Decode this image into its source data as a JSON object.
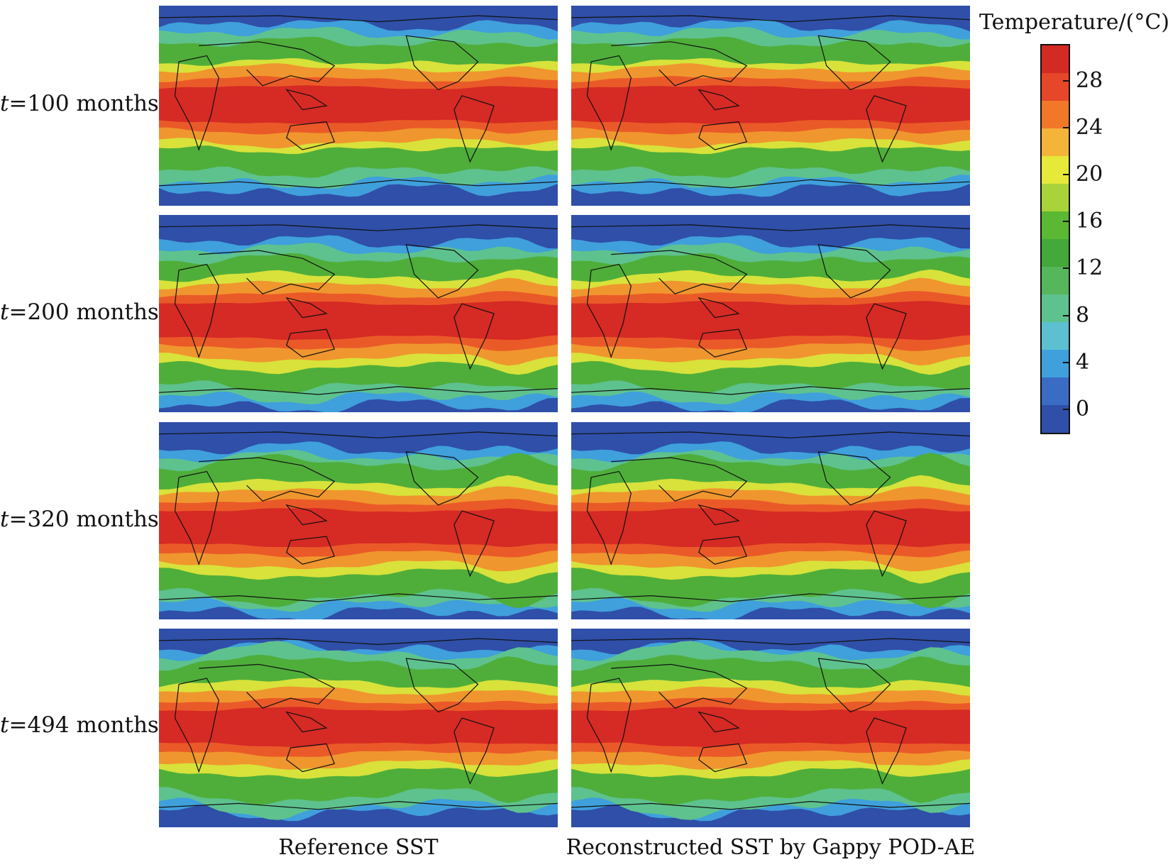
{
  "rows": [
    {
      "t_symbol": "t",
      "equals": "=",
      "value": "100",
      "unit": "months"
    },
    {
      "t_symbol": "t",
      "equals": "=",
      "value": "200",
      "unit": "months"
    },
    {
      "t_symbol": "t",
      "equals": "=",
      "value": "320",
      "unit": "months"
    },
    {
      "t_symbol": "t",
      "equals": "=",
      "value": "494",
      "unit": "months"
    }
  ],
  "columns": [
    {
      "label": "Reference SST"
    },
    {
      "label": "Reconstructed SST by Gappy POD-AE"
    }
  ],
  "colorbar": {
    "title": "Temperature/(°C)",
    "tick_labels": [
      "28",
      "24",
      "20",
      "16",
      "12",
      "8",
      "4",
      "0"
    ],
    "range": [
      -2,
      31
    ],
    "colors": [
      "#2f4fa8",
      "#3a6cc4",
      "#3fa0dc",
      "#5cc0d0",
      "#5ec28e",
      "#56b65c",
      "#44a83a",
      "#5bb832",
      "#a8d43a",
      "#e6e83a",
      "#f4b43a",
      "#f07828",
      "#e6462a",
      "#d42a24"
    ]
  },
  "map_colors": {
    "cold": "#2f4fa8",
    "cool": "#3fa0dc",
    "mild": "#5ec28e",
    "green": "#4fae3a",
    "yellow": "#d8e23a",
    "orange": "#f0962e",
    "warm": "#ea5a28",
    "hot": "#d62a24"
  }
}
